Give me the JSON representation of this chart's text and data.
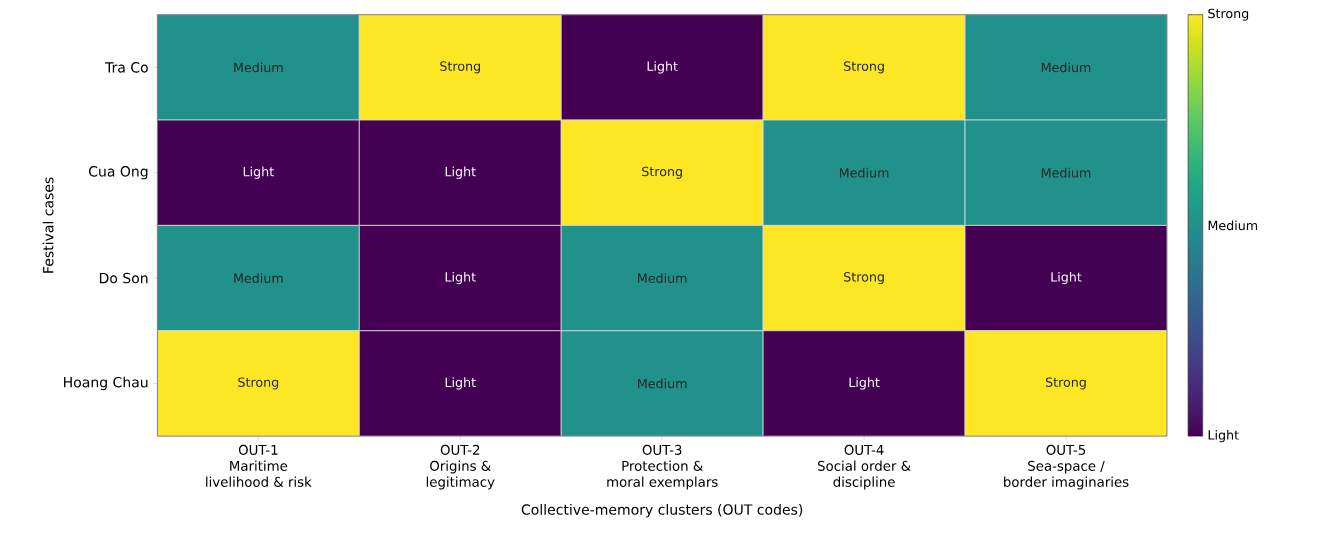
{
  "chart_data": {
    "type": "heatmap",
    "xlabel": "Collective-memory clusters (OUT codes)",
    "ylabel": "Festival cases",
    "categories": [
      "OUT-1\nMaritime\nlivelihood & risk",
      "OUT-2\nOrigins &\nlegitimacy",
      "OUT-3\nProtection &\nmoral exemplars",
      "OUT-4\nSocial order &\ndiscipline",
      "OUT-5\nSea-space /\nborder imaginaries"
    ],
    "y_categories": [
      "Tra Co",
      "Cua Ong",
      "Do Son",
      "Hoang Chau"
    ],
    "cells": [
      [
        2,
        3,
        1,
        3,
        2
      ],
      [
        1,
        1,
        3,
        2,
        2
      ],
      [
        2,
        1,
        2,
        3,
        1
      ],
      [
        3,
        1,
        2,
        1,
        3
      ]
    ],
    "cell_labels": [
      [
        "Medium",
        "Strong",
        "Light",
        "Strong",
        "Medium"
      ],
      [
        "Light",
        "Light",
        "Strong",
        "Medium",
        "Medium"
      ],
      [
        "Medium",
        "Light",
        "Medium",
        "Strong",
        "Light"
      ],
      [
        "Strong",
        "Light",
        "Medium",
        "Light",
        "Strong"
      ]
    ],
    "clim": [
      1,
      3
    ],
    "cticks": [
      {
        "value": 1,
        "label": "Light"
      },
      {
        "value": 2,
        "label": "Medium"
      },
      {
        "value": 3,
        "label": "Strong"
      }
    ]
  }
}
